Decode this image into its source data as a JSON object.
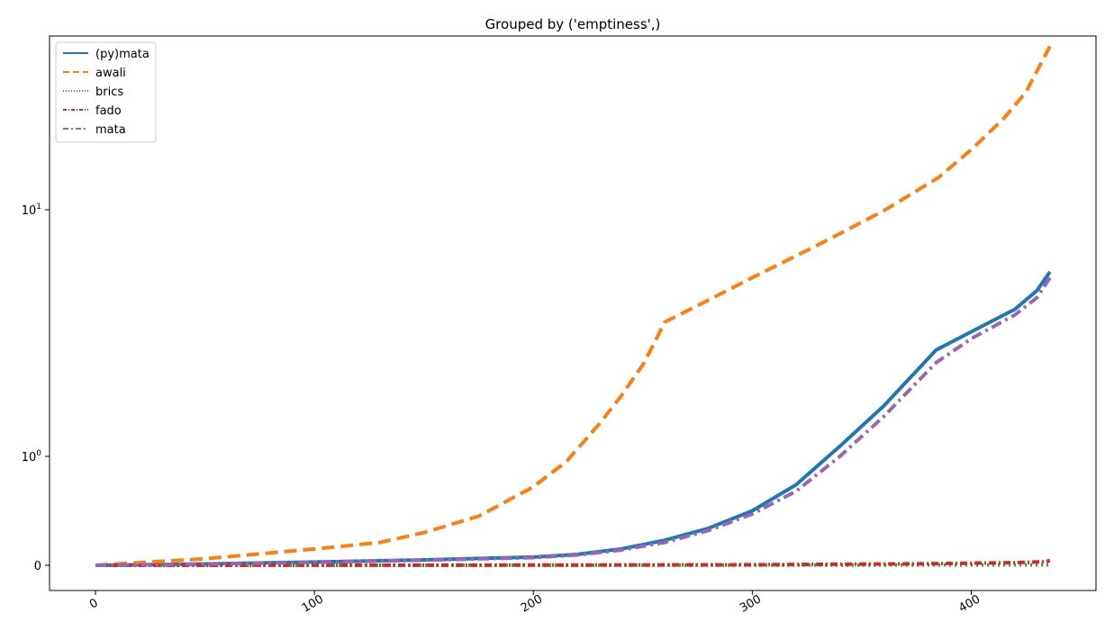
{
  "chart_data": {
    "type": "line",
    "title": "Grouped by ('emptiness',)",
    "xlabel": "",
    "ylabel": "",
    "yscale": "symlog",
    "xlim": [
      -21,
      457
    ],
    "ylim": [
      -0.02,
      95
    ],
    "grid": false,
    "legend_position": "top-left",
    "x_ticks": [
      0,
      100,
      200,
      300,
      400
    ],
    "y_ticks": [
      {
        "value": 0,
        "label": "0",
        "exp": ""
      },
      {
        "value": 1,
        "label": "10",
        "exp": "0"
      },
      {
        "value": 10,
        "label": "10",
        "exp": "1"
      }
    ],
    "series": [
      {
        "name": "(py)mata",
        "color": "#1f77b4",
        "dash": "",
        "x": [
          0,
          50,
          100,
          150,
          200,
          220,
          240,
          260,
          280,
          300,
          320,
          340,
          360,
          384,
          400,
          420,
          430,
          436
        ],
        "y": [
          0,
          0.012,
          0.03,
          0.05,
          0.075,
          0.1,
          0.15,
          0.23,
          0.34,
          0.5,
          0.74,
          1.1,
          1.6,
          2.7,
          3.2,
          3.95,
          4.7,
          5.6
        ]
      },
      {
        "name": "awali",
        "color": "#ff7f0e",
        "dash": "14 7",
        "x": [
          0,
          50,
          100,
          130,
          150,
          175,
          200,
          215,
          230,
          240,
          250,
          255,
          260,
          280,
          300,
          330,
          360,
          385,
          400,
          415,
          425,
          436
        ],
        "y": [
          0,
          0.06,
          0.15,
          0.21,
          0.3,
          0.45,
          0.72,
          0.95,
          1.35,
          1.75,
          2.35,
          2.85,
          3.5,
          4.3,
          5.3,
          7.2,
          9.9,
          13.5,
          17.5,
          23.5,
          30,
          46
        ]
      },
      {
        "name": "brics",
        "color": "#2ca02c",
        "dash": "2 4",
        "x": [
          0,
          100,
          200,
          300,
          400,
          436
        ],
        "y": [
          0,
          0,
          0.001,
          0.002,
          0.003,
          0.004
        ]
      },
      {
        "name": "fado",
        "color": "#d62728",
        "dash": "8 3 2 3",
        "x": [
          0,
          100,
          200,
          300,
          380,
          420,
          434,
          436
        ],
        "y": [
          0,
          0.001,
          0.002,
          0.005,
          0.014,
          0.024,
          0.032,
          0.045
        ]
      },
      {
        "name": "mata",
        "color": "#9467bd",
        "dash": "12 5 3 5",
        "x": [
          0,
          50,
          100,
          150,
          200,
          220,
          240,
          260,
          280,
          300,
          320,
          340,
          360,
          384,
          400,
          420,
          430,
          436
        ],
        "y": [
          0,
          0.011,
          0.028,
          0.047,
          0.07,
          0.095,
          0.14,
          0.21,
          0.32,
          0.47,
          0.68,
          1.0,
          1.45,
          2.4,
          3.0,
          3.75,
          4.4,
          5.3
        ]
      }
    ]
  }
}
